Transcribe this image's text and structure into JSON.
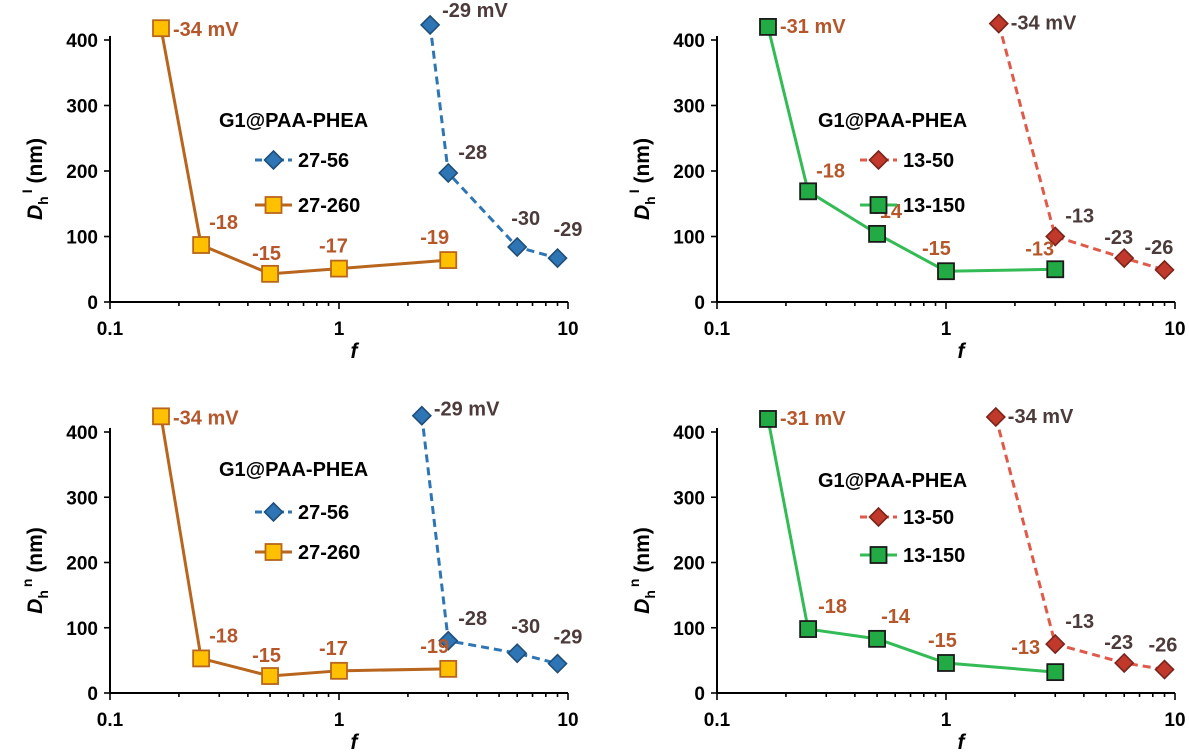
{
  "chart_data": [
    {
      "type": "line",
      "panel": "top-left",
      "xscale": "log",
      "xlim": [
        0.1,
        10
      ],
      "ylim": [
        0,
        400
      ],
      "xticks": [
        0.1,
        1,
        10
      ],
      "xtick_labels": [
        "0.1",
        "1",
        "10"
      ],
      "yticks": [
        0,
        100,
        200,
        300,
        400
      ],
      "ytick_labels": [
        "0",
        "100",
        "200",
        "300",
        "400"
      ],
      "xlabel": "f",
      "ylabel_main": "D",
      "ylabel_sub": "h",
      "ylabel_sup": "I",
      "ylabel_unit": " (nm)",
      "legend_title": "G1@PAA-PHEA",
      "legend_position": "upper-middle",
      "series": [
        {
          "name": "27-56",
          "color": "#2e75b6",
          "marker": "diamond",
          "marker_fill": "#2e75b6",
          "marker_edge": "#1f4e79",
          "line_style": "dashed",
          "x": [
            2.5,
            3,
            6,
            9
          ],
          "y": [
            423,
            197,
            84,
            67
          ],
          "labels": [
            "-29 mV",
            "-28",
            "-30",
            "-29"
          ],
          "label_color": "#4d3b3b"
        },
        {
          "name": "27-260",
          "color": "#b8651e",
          "marker": "square",
          "marker_fill": "#ffc000",
          "marker_edge": "#b8651e",
          "line_style": "solid",
          "x": [
            0.167,
            0.25,
            0.5,
            1,
            3
          ],
          "y": [
            418,
            87,
            43,
            51,
            64
          ],
          "labels": [
            "-34  mV",
            "-18",
            "-15",
            "-17",
            "-19"
          ],
          "label_color": "#b5572a"
        }
      ]
    },
    {
      "type": "line",
      "panel": "top-right",
      "xscale": "log",
      "xlim": [
        0.1,
        10
      ],
      "ylim": [
        0,
        400
      ],
      "xticks": [
        0.1,
        1,
        10
      ],
      "xtick_labels": [
        "0.1",
        "1",
        "10"
      ],
      "yticks": [
        0,
        100,
        200,
        300,
        400
      ],
      "ytick_labels": [
        "0",
        "100",
        "200",
        "300",
        "400"
      ],
      "xlabel": "f",
      "ylabel_main": "D",
      "ylabel_sub": "h",
      "ylabel_sup": "I",
      "ylabel_unit": " (nm)",
      "legend_title": "G1@PAA-PHEA",
      "legend_position": "upper-middle",
      "series": [
        {
          "name": "13-50",
          "color": "#e05a4a",
          "marker": "diamond",
          "marker_fill": "#c0392b",
          "marker_edge": "#7b241c",
          "line_style": "dashed",
          "x": [
            1.7,
            3,
            6,
            9
          ],
          "y": [
            425,
            100,
            67,
            49
          ],
          "labels": [
            "-34 mV",
            "-13",
            "-23",
            "-26"
          ],
          "label_color": "#4d3b3b"
        },
        {
          "name": "13-150",
          "color": "#33bb55",
          "marker": "square",
          "marker_fill": "#22aa44",
          "marker_edge": "#1a1a1a",
          "line_style": "solid",
          "x": [
            0.167,
            0.25,
            0.5,
            1,
            3
          ],
          "y": [
            420,
            169,
            104,
            47,
            50
          ],
          "labels": [
            "-31 mV",
            "-18",
            "-14",
            "-15",
            "-13"
          ],
          "label_color": "#b5572a"
        }
      ]
    },
    {
      "type": "line",
      "panel": "bottom-left",
      "xscale": "log",
      "xlim": [
        0.1,
        10
      ],
      "ylim": [
        0,
        400
      ],
      "xticks": [
        0.1,
        1,
        10
      ],
      "xtick_labels": [
        "0.1",
        "1",
        "10"
      ],
      "yticks": [
        0,
        100,
        200,
        300,
        400
      ],
      "ytick_labels": [
        "0",
        "100",
        "200",
        "300",
        "400"
      ],
      "xlabel": "f",
      "ylabel_main": "D",
      "ylabel_sub": "h",
      "ylabel_sup": "n",
      "ylabel_unit": " (nm)",
      "legend_title": "G1@PAA-PHEA",
      "legend_position": "upper-middle",
      "series": [
        {
          "name": "27-56",
          "color": "#2e75b6",
          "marker": "diamond",
          "marker_fill": "#2e75b6",
          "marker_edge": "#1f4e79",
          "line_style": "dashed",
          "x": [
            2.3,
            3,
            6,
            9
          ],
          "y": [
            425,
            80,
            61,
            45
          ],
          "labels": [
            "-29 mV",
            "-28",
            "-30",
            "-29"
          ],
          "label_color": "#4d3b3b"
        },
        {
          "name": "27-260",
          "color": "#b8651e",
          "marker": "square",
          "marker_fill": "#ffc000",
          "marker_edge": "#b8651e",
          "line_style": "solid",
          "x": [
            0.167,
            0.25,
            0.5,
            1,
            3
          ],
          "y": [
            424,
            53,
            26,
            34,
            37
          ],
          "labels": [
            "-34  mV",
            "-18",
            "-15",
            "-17",
            "-19"
          ],
          "label_color": "#b5572a"
        }
      ]
    },
    {
      "type": "line",
      "panel": "bottom-right",
      "xscale": "log",
      "xlim": [
        0.1,
        10
      ],
      "ylim": [
        0,
        400
      ],
      "xticks": [
        0.1,
        1,
        10
      ],
      "xtick_labels": [
        "0.1",
        "1",
        "10"
      ],
      "yticks": [
        0,
        100,
        200,
        300,
        400
      ],
      "ytick_labels": [
        "0",
        "100",
        "200",
        "300",
        "400"
      ],
      "xlabel": "f",
      "ylabel_main": "D",
      "ylabel_sub": "h",
      "ylabel_sup": "n",
      "ylabel_unit": " (nm)",
      "legend_title": "G1@PAA-PHEA",
      "legend_position": "upper-middle",
      "series": [
        {
          "name": "13-50",
          "color": "#e05a4a",
          "marker": "diamond",
          "marker_fill": "#c0392b",
          "marker_edge": "#7b241c",
          "line_style": "dashed",
          "x": [
            1.65,
            3,
            6,
            9
          ],
          "y": [
            423,
            75,
            46,
            36
          ],
          "labels": [
            "-34 mV",
            "-13",
            "-23",
            "-26"
          ],
          "label_color": "#4d3b3b"
        },
        {
          "name": "13-150",
          "color": "#33bb55",
          "marker": "square",
          "marker_fill": "#22aa44",
          "marker_edge": "#1a1a1a",
          "line_style": "solid",
          "x": [
            0.167,
            0.25,
            0.5,
            1,
            3
          ],
          "y": [
            420,
            98,
            83,
            46,
            32
          ],
          "labels": [
            "-31 mV",
            "-18",
            "-14",
            "-15",
            "-13"
          ],
          "label_color": "#b5572a"
        }
      ]
    }
  ]
}
